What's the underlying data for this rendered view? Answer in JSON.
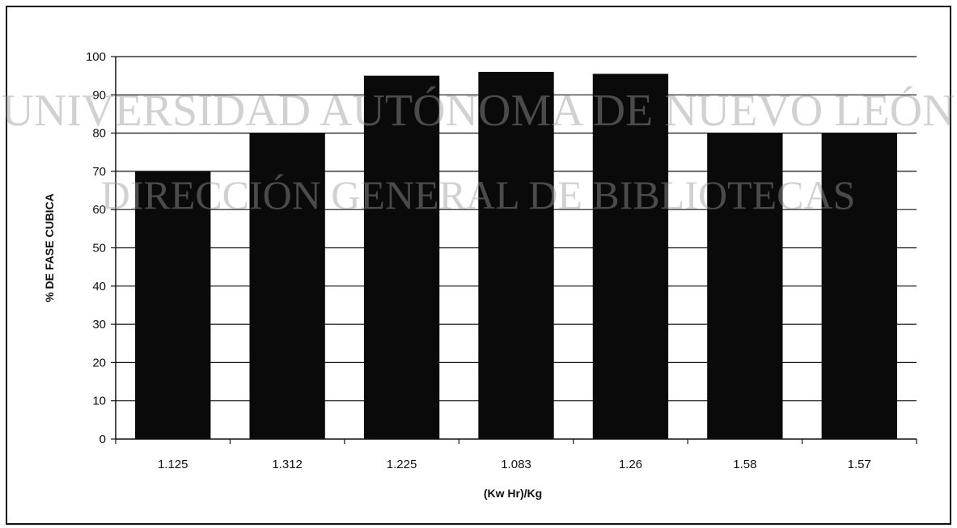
{
  "watermark": {
    "line1": "UNIVERSIDAD AUTÓNOMA DE NUEVO LEÓN",
    "line2": "DIRECCIÓN GENERAL DE BIBLIOTECAS",
    "color": "#9a9a9a"
  },
  "chart_data": {
    "type": "bar",
    "title": "",
    "xlabel": "(Kw Hr)/Kg",
    "ylabel": "% DE FASE CUBICA",
    "categories": [
      "1.125",
      "1.312",
      "1.225",
      "1.083",
      "1.26",
      "1.58",
      "1.57"
    ],
    "values": [
      70,
      80,
      95,
      96,
      95.5,
      80,
      80
    ],
    "ylim": [
      0,
      100
    ],
    "yticks": [
      "0",
      "10",
      "20",
      "30",
      "40",
      "50",
      "60",
      "70",
      "80",
      "90",
      "100"
    ],
    "grid": true,
    "legend": "none",
    "bar_color": "#0a0a0a"
  }
}
